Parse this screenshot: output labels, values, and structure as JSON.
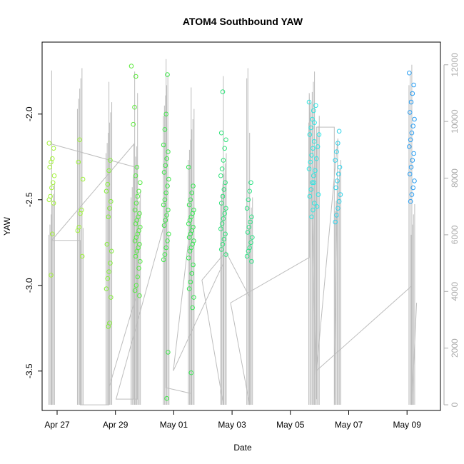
{
  "chart_data": {
    "type": "scatter",
    "title": "ATOM4 Southbound YAW",
    "xlabel": "Date",
    "ylabel": "YAW",
    "x_ticks": [
      "Apr 27",
      "Apr 29",
      "May 01",
      "May 03",
      "May 05",
      "May 07",
      "May 09"
    ],
    "y_ticks": [
      "-3.5",
      "-3.0",
      "-2.5",
      "-2.0"
    ],
    "y2_ticks": [
      "0",
      "2000",
      "4000",
      "6000",
      "8000",
      "10000",
      "12000"
    ],
    "xlim": [
      "2023-04-26T16:00",
      "2023-05-10T14:00"
    ],
    "ylim": [
      -3.73,
      -1.58
    ],
    "y2lim": [
      -200,
      12800
    ],
    "grid": false,
    "legend": "none",
    "secondary_axis_color": "#aaaaaa",
    "trace_color": "#bdbdbd",
    "groups": [
      {
        "date": "2023-04-27T00:00",
        "color": "#a3f23a",
        "values": [
          -2.17,
          -2.2,
          -2.26,
          -2.28,
          -2.31,
          -2.36,
          -2.4,
          -2.43,
          -2.48,
          -2.5,
          -2.52,
          -2.7,
          -2.94
        ]
      },
      {
        "date": "2023-04-28T00:00",
        "color": "#9ef23a",
        "values": [
          -2.15,
          -2.28,
          -2.38,
          -2.56,
          -2.58,
          -2.66,
          -2.68,
          -2.83
        ]
      },
      {
        "date": "2023-04-29T00:00",
        "color": "#84ee3a",
        "values": [
          -2.27,
          -2.33,
          -2.41,
          -2.45,
          -2.51,
          -2.55,
          -2.6,
          -2.76,
          -2.8,
          -2.87,
          -2.92,
          -2.96,
          -3.02,
          -3.07,
          -3.22,
          -3.24
        ]
      },
      {
        "date": "2023-04-29T21:00",
        "color": "#5eea3e",
        "values": [
          -1.72,
          -1.78,
          -1.96,
          -2.06
        ]
      },
      {
        "date": "2023-04-30T00:00",
        "color": "#54ea42",
        "values": [
          -2.31,
          -2.36,
          -2.4,
          -2.45,
          -2.48,
          -2.52,
          -2.56,
          -2.58,
          -2.6,
          -2.62,
          -2.64,
          -2.66,
          -2.68,
          -2.7,
          -2.72,
          -2.74,
          -2.76,
          -2.78,
          -2.8,
          -2.83,
          -2.86,
          -2.9,
          -2.95,
          -3.0,
          -3.03,
          -3.06
        ]
      },
      {
        "date": "2023-05-01T00:00",
        "color": "#3ee64a",
        "values": [
          -1.77,
          -2.0,
          -2.09,
          -2.18,
          -2.22,
          -2.26,
          -2.3,
          -2.34,
          -2.38,
          -2.42,
          -2.46,
          -2.5,
          -2.53,
          -2.56,
          -2.59,
          -2.62,
          -2.65,
          -2.7,
          -2.74,
          -2.78,
          -2.82,
          -2.85,
          -3.39,
          -3.66
        ]
      },
      {
        "date": "2023-05-01T21:00",
        "color": "#36e652",
        "values": [
          -2.31,
          -2.42,
          -2.46,
          -2.5,
          -2.53,
          -2.56,
          -2.58,
          -2.6,
          -2.62,
          -2.64,
          -2.66,
          -2.68,
          -2.7,
          -2.72,
          -2.74,
          -2.76,
          -2.78,
          -2.8,
          -2.84,
          -2.88,
          -2.93,
          -2.98,
          -3.02,
          -3.07,
          -3.13,
          -3.51
        ]
      },
      {
        "date": "2023-05-03T00:00",
        "color": "#30e27a",
        "values": [
          -1.87,
          -2.11,
          -2.15,
          -2.2,
          -2.27,
          -2.32,
          -2.36,
          -2.4,
          -2.44,
          -2.48,
          -2.52,
          -2.55,
          -2.58,
          -2.61,
          -2.64,
          -2.67,
          -2.7,
          -2.73,
          -2.76,
          -2.79,
          -2.82
        ]
      },
      {
        "date": "2023-05-03T22:00",
        "color": "#2ee285",
        "values": [
          -2.4,
          -2.45,
          -2.5,
          -2.55,
          -2.6,
          -2.63,
          -2.66,
          -2.69,
          -2.72,
          -2.75,
          -2.78,
          -2.8,
          -2.83,
          -2.86
        ]
      },
      {
        "date": "2023-05-06T02:00",
        "color": "#2ee6e0",
        "values": [
          -1.93,
          -1.98,
          -2.03,
          -2.08,
          -2.12,
          -2.16,
          -2.2,
          -2.24,
          -2.28,
          -2.32,
          -2.36,
          -2.4,
          -2.44,
          -2.48,
          -2.52,
          -2.56,
          -2.6
        ]
      },
      {
        "date": "2023-05-06T06:00",
        "color": "#2ee6e6",
        "values": [
          -1.95,
          -2.05,
          -2.12,
          -2.19,
          -2.26,
          -2.33,
          -2.4,
          -2.47,
          -2.54
        ]
      },
      {
        "date": "2023-05-07T00:00",
        "color": "#30d2ea",
        "values": [
          -2.1,
          -2.17,
          -2.22,
          -2.27,
          -2.31,
          -2.35,
          -2.39,
          -2.43,
          -2.47,
          -2.51,
          -2.55,
          -2.59,
          -2.63
        ]
      },
      {
        "date": "2023-05-09T14:00",
        "color": "#2a9ef2",
        "values": [
          -1.76,
          -1.83,
          -1.88,
          -1.93,
          -1.99,
          -2.03,
          -2.07,
          -2.11,
          -2.15,
          -2.19,
          -2.23,
          -2.27,
          -2.31,
          -2.35,
          -2.39,
          -2.43,
          -2.47,
          -2.51
        ]
      }
    ],
    "secondary_trace": [
      [
        "2023-04-27T00:00",
        0
      ],
      [
        "2023-04-27T00:00",
        11800
      ],
      [
        "2023-04-27T00:00",
        9200
      ],
      [
        "2023-04-29T21:00",
        8400
      ],
      [
        "2023-04-29T21:00",
        200
      ],
      [
        "2023-04-29T21:00",
        9200
      ],
      [
        "2023-04-27T00:00",
        5800
      ],
      [
        "2023-04-28T00:00",
        5800
      ],
      [
        "2023-04-28T00:00",
        0
      ],
      [
        "2023-04-29T00:00",
        0
      ],
      [
        "2023-04-29T00:00",
        11400
      ],
      [
        "2023-04-29T00:00",
        600
      ],
      [
        "2023-04-30T00:00",
        4000
      ],
      [
        "2023-04-30T00:00",
        11000
      ],
      [
        "2023-04-30T00:00",
        200
      ],
      [
        "2023-04-29T06:00",
        200
      ],
      [
        "2023-05-01T00:00",
        6600
      ],
      [
        "2023-05-01T00:00",
        12200
      ],
      [
        "2023-05-01T00:00",
        600
      ],
      [
        "2023-05-01T21:00",
        400
      ],
      [
        "2023-05-01T21:00",
        11200
      ],
      [
        "2023-05-01T21:00",
        0
      ],
      [
        "2023-05-01T21:00",
        6600
      ],
      [
        "2023-05-01T06:00",
        1200
      ],
      [
        "2023-05-03T00:00",
        5000
      ],
      [
        "2023-05-03T00:00",
        11600
      ],
      [
        "2023-05-03T00:00",
        0
      ],
      [
        "2023-05-02T06:00",
        4400
      ],
      [
        "2023-05-03T02:00",
        5400
      ],
      [
        "2023-05-03T22:00",
        3800
      ],
      [
        "2023-05-03T22:00",
        9600
      ],
      [
        "2023-05-03T22:00",
        0
      ],
      [
        "2023-05-03T06:00",
        3600
      ],
      [
        "2023-05-06T00:00",
        5200
      ],
      [
        "2023-05-06T00:00",
        11000
      ],
      [
        "2023-05-06T06:00",
        200
      ],
      [
        "2023-05-06T06:00",
        9800
      ],
      [
        "2023-05-06T21:00",
        9800
      ],
      [
        "2023-05-06T21:00",
        0
      ],
      [
        "2023-05-07T00:00",
        9400
      ],
      [
        "2023-05-06T06:00",
        1200
      ],
      [
        "2023-05-09T14:00",
        4200
      ],
      [
        "2023-05-09T14:00",
        12000
      ],
      [
        "2023-05-09T14:00",
        0
      ],
      [
        "2023-05-09T18:00",
        3600
      ]
    ]
  }
}
